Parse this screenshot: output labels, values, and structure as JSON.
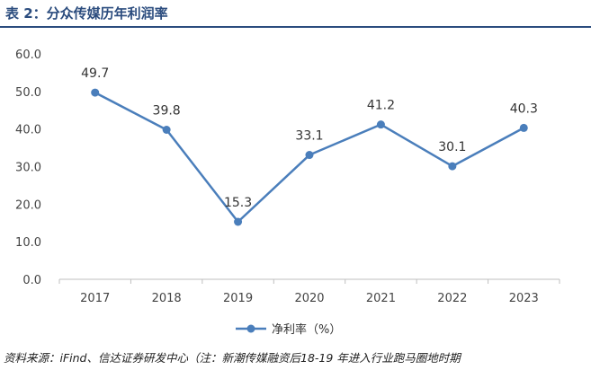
{
  "header": {
    "title": "表 2：分众传媒历年利润率"
  },
  "chart_data": {
    "type": "line",
    "title": "",
    "xlabel": "",
    "ylabel": "",
    "categories": [
      "2017",
      "2018",
      "2019",
      "2020",
      "2021",
      "2022",
      "2023"
    ],
    "series": [
      {
        "name": "净利率（%）",
        "values": [
          49.7,
          39.8,
          15.3,
          33.1,
          41.2,
          30.1,
          40.3
        ],
        "color": "#4a7ebb"
      }
    ],
    "data_labels": [
      "49.7",
      "39.8",
      "15.3",
      "33.1",
      "41.2",
      "30.1",
      "40.3"
    ],
    "ylim": [
      0,
      60
    ],
    "yticks": [
      "0.0",
      "10.0",
      "20.0",
      "30.0",
      "40.0",
      "50.0",
      "60.0"
    ],
    "grid": false,
    "legend": "bottom-center"
  },
  "footer": {
    "source": "资料来源：iFind、信达证券研发中心（注：新潮传媒融资后18-19 年进入行业跑马圈地时期"
  }
}
